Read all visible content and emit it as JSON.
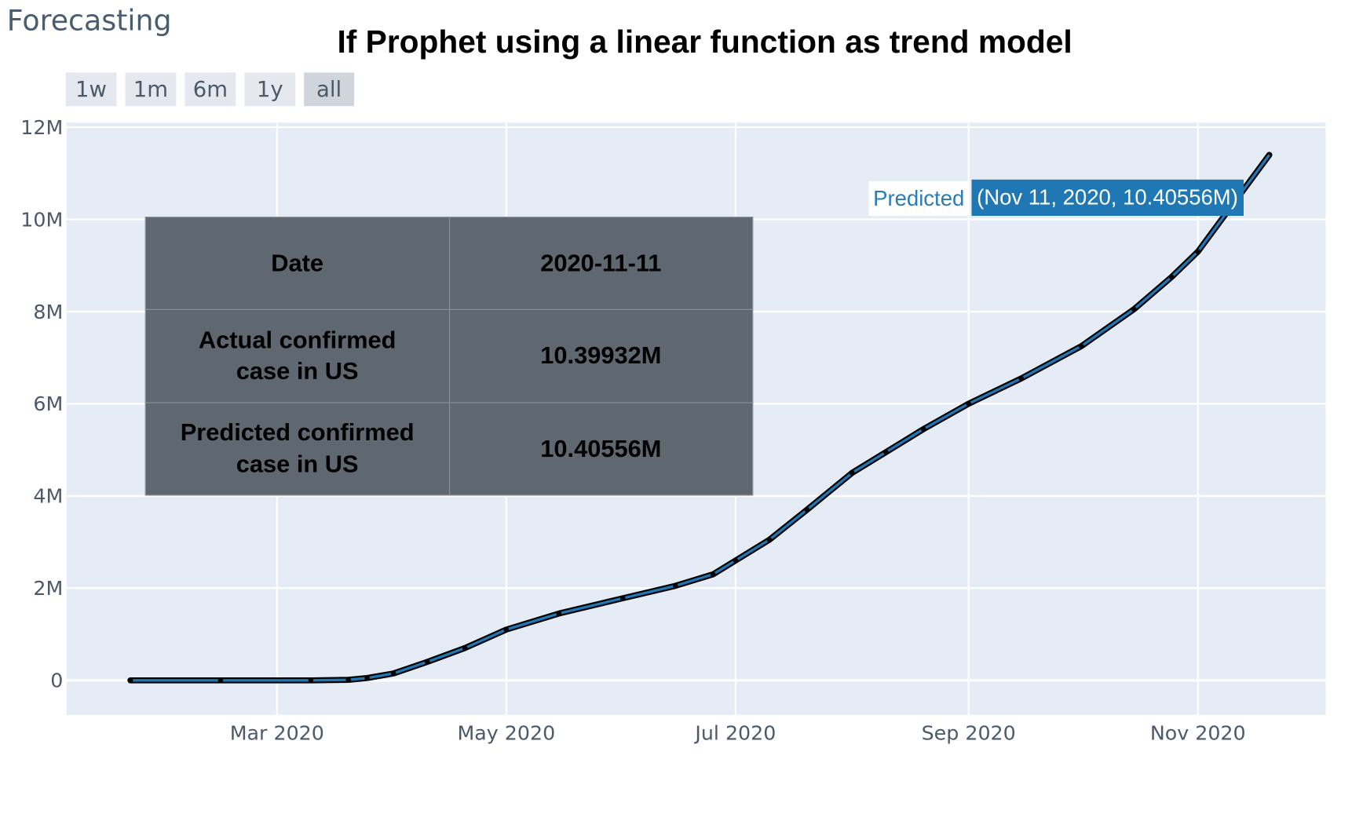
{
  "app_title": "Forecasting",
  "range_buttons": [
    {
      "label": "1w",
      "active": false
    },
    {
      "label": "1m",
      "active": false
    },
    {
      "label": "6m",
      "active": false
    },
    {
      "label": "1y",
      "active": false
    },
    {
      "label": "all",
      "active": true
    }
  ],
  "table": {
    "rows": [
      {
        "label": "Date",
        "value": "2020-11-11"
      },
      {
        "label": "Actual confirmed case in US",
        "value": "10.39932M"
      },
      {
        "label": "Predicted confirmed case in US",
        "value": "10.40556M"
      }
    ]
  },
  "hover": {
    "series": "Predicted",
    "value_text": "(Nov 11, 2020, 10.40556M)"
  },
  "colors": {
    "plot_bg": "#e5ecf6",
    "predicted_line": "#1f77b4",
    "actual_points": "#000000",
    "table_bg": "#5f6770"
  },
  "chart_data": {
    "type": "line",
    "title": "If Prophet using a linear function as trend model",
    "xlabel": "",
    "ylabel": "",
    "x_ticks": [
      {
        "date": "2020-03-01",
        "label": "Mar 2020"
      },
      {
        "date": "2020-05-01",
        "label": "May 2020"
      },
      {
        "date": "2020-07-01",
        "label": "Jul 2020"
      },
      {
        "date": "2020-09-01",
        "label": "Sep 2020"
      },
      {
        "date": "2020-11-01",
        "label": "Nov 2020"
      }
    ],
    "y_ticks": [
      {
        "value": 0,
        "label": "0"
      },
      {
        "value": 2000000,
        "label": "2M"
      },
      {
        "value": 4000000,
        "label": "4M"
      },
      {
        "value": 6000000,
        "label": "6M"
      },
      {
        "value": 8000000,
        "label": "8M"
      },
      {
        "value": 10000000,
        "label": "10M"
      },
      {
        "value": 12000000,
        "label": "12M"
      }
    ],
    "xlim": [
      "2020-01-05",
      "2020-12-05"
    ],
    "ylim": [
      -750000,
      12100000
    ],
    "grid": true,
    "series": [
      {
        "name": "Predicted",
        "style": "line",
        "points": [
          [
            "2020-01-22",
            0
          ],
          [
            "2020-02-15",
            0
          ],
          [
            "2020-03-10",
            0
          ],
          [
            "2020-03-20",
            10000
          ],
          [
            "2020-03-25",
            50000
          ],
          [
            "2020-04-01",
            150000
          ],
          [
            "2020-04-10",
            400000
          ],
          [
            "2020-04-20",
            700000
          ],
          [
            "2020-05-01",
            1100000
          ],
          [
            "2020-05-15",
            1450000
          ],
          [
            "2020-06-01",
            1780000
          ],
          [
            "2020-06-15",
            2050000
          ],
          [
            "2020-06-25",
            2300000
          ],
          [
            "2020-07-01",
            2600000
          ],
          [
            "2020-07-10",
            3050000
          ],
          [
            "2020-07-20",
            3700000
          ],
          [
            "2020-08-01",
            4500000
          ],
          [
            "2020-08-10",
            4950000
          ],
          [
            "2020-08-20",
            5450000
          ],
          [
            "2020-09-01",
            6000000
          ],
          [
            "2020-09-15",
            6550000
          ],
          [
            "2020-10-01",
            7250000
          ],
          [
            "2020-10-15",
            8050000
          ],
          [
            "2020-10-25",
            8750000
          ],
          [
            "2020-11-01",
            9300000
          ],
          [
            "2020-11-11",
            10405560
          ],
          [
            "2020-11-20",
            11400000
          ]
        ]
      },
      {
        "name": "Actual",
        "style": "markers",
        "points": [
          [
            "2020-01-22",
            0
          ],
          [
            "2020-02-15",
            0
          ],
          [
            "2020-03-10",
            0
          ],
          [
            "2020-03-20",
            10000
          ],
          [
            "2020-03-25",
            50000
          ],
          [
            "2020-04-01",
            150000
          ],
          [
            "2020-04-10",
            400000
          ],
          [
            "2020-04-20",
            700000
          ],
          [
            "2020-05-01",
            1100000
          ],
          [
            "2020-05-15",
            1450000
          ],
          [
            "2020-06-01",
            1780000
          ],
          [
            "2020-06-15",
            2050000
          ],
          [
            "2020-06-25",
            2300000
          ],
          [
            "2020-07-01",
            2600000
          ],
          [
            "2020-07-10",
            3050000
          ],
          [
            "2020-07-20",
            3700000
          ],
          [
            "2020-08-01",
            4500000
          ],
          [
            "2020-08-10",
            4950000
          ],
          [
            "2020-08-20",
            5450000
          ],
          [
            "2020-09-01",
            6000000
          ],
          [
            "2020-09-15",
            6550000
          ],
          [
            "2020-10-01",
            7250000
          ],
          [
            "2020-10-15",
            8050000
          ],
          [
            "2020-10-25",
            8750000
          ],
          [
            "2020-11-01",
            9300000
          ],
          [
            "2020-11-11",
            10399320
          ]
        ]
      }
    ]
  }
}
